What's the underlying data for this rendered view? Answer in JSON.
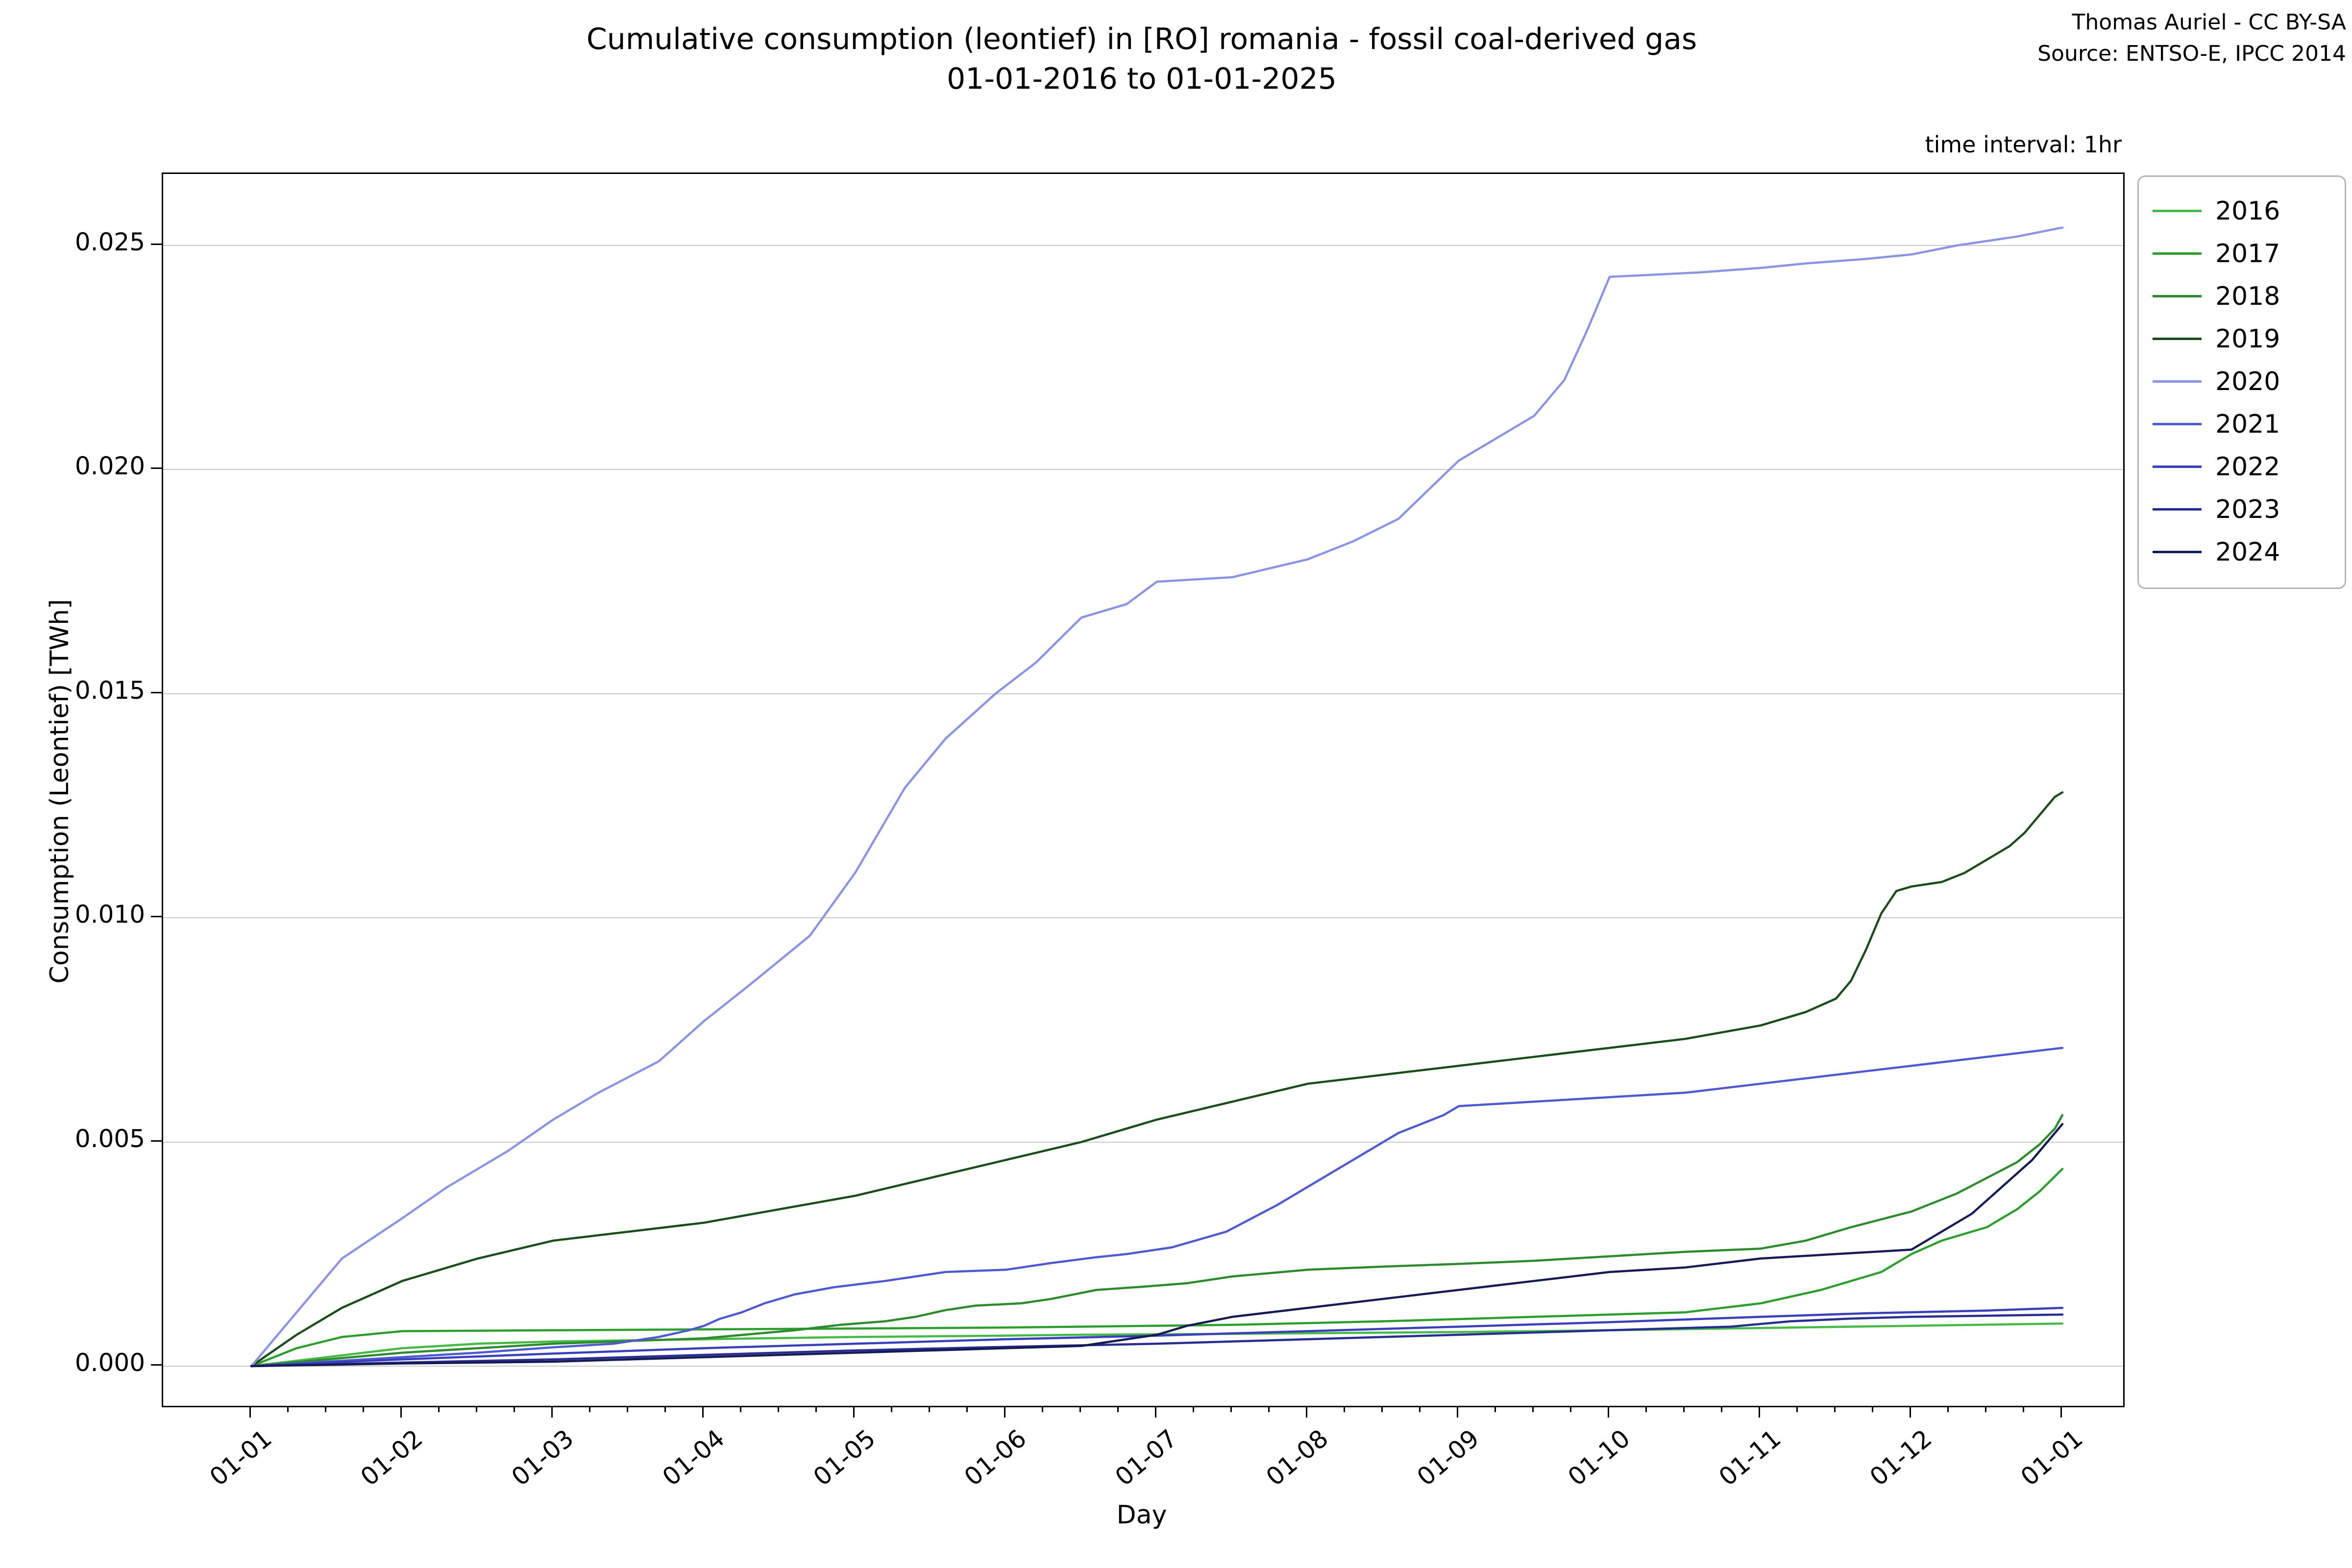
{
  "header": {
    "title_line1": "Cumulative consumption (leontief) in [RO] romania - fossil coal-derived gas",
    "title_line2": "01-01-2016 to 01-01-2025",
    "attribution_line1": "Thomas Auriel - CC BY-SA",
    "attribution_line2": "Source: ENTSO-E, IPCC 2014",
    "time_interval": "time interval: 1hr"
  },
  "chart_data": {
    "type": "line",
    "title": "Cumulative consumption (leontief) in [RO] romania - fossil coal-derived gas 01-01-2016 to 01-01-2025",
    "xlabel": "Day",
    "ylabel": "Consumption (Leontief) [TWh]",
    "grid": "horizontal",
    "legend_position": "upper right, outside axes",
    "x_tick_labels": [
      "01-01",
      "01-02",
      "01-03",
      "01-04",
      "01-05",
      "01-06",
      "01-07",
      "01-08",
      "01-09",
      "01-10",
      "01-11",
      "01-12",
      "01-01"
    ],
    "y_tick_labels": [
      "0.000",
      "0.005",
      "0.010",
      "0.015",
      "0.020",
      "0.025"
    ],
    "y_tick_values": [
      0.0,
      0.005,
      0.01,
      0.015,
      0.02,
      0.025
    ],
    "ylim": [
      -0.00089,
      0.0266
    ],
    "xlim_months": [
      -0.584,
      12.4
    ],
    "minor_x_ticks_per_month": 3,
    "series": [
      {
        "name": "2016",
        "color": "#46b946",
        "points": [
          [
            0,
            0
          ],
          [
            0.5,
            0.0002
          ],
          [
            1,
            0.0004
          ],
          [
            1.5,
            0.0005
          ],
          [
            2,
            0.00055
          ],
          [
            3,
            0.0006
          ],
          [
            4,
            0.00065
          ],
          [
            5,
            0.00068
          ],
          [
            5.5,
            0.0007
          ],
          [
            6.5,
            0.00072
          ],
          [
            8,
            0.00076
          ],
          [
            9,
            0.0008
          ],
          [
            10,
            0.00085
          ],
          [
            11,
            0.0009
          ],
          [
            12,
            0.00095
          ]
        ]
      },
      {
        "name": "2017",
        "color": "#2d9e2d",
        "points": [
          [
            0,
            0
          ],
          [
            0.3,
            0.0004
          ],
          [
            0.6,
            0.00065
          ],
          [
            1,
            0.00078
          ],
          [
            2,
            0.0008
          ],
          [
            3,
            0.00082
          ],
          [
            4,
            0.00084
          ],
          [
            5,
            0.00086
          ],
          [
            5.5,
            0.00088
          ],
          [
            6.5,
            0.00092
          ],
          [
            7.5,
            0.001
          ],
          [
            8.5,
            0.0011
          ],
          [
            9.5,
            0.0012
          ],
          [
            10,
            0.0014
          ],
          [
            10.4,
            0.0017
          ],
          [
            10.8,
            0.0021
          ],
          [
            11,
            0.0025
          ],
          [
            11.2,
            0.0028
          ],
          [
            11.5,
            0.0031
          ],
          [
            11.7,
            0.0035
          ],
          [
            11.85,
            0.0039
          ],
          [
            12,
            0.0044
          ]
        ]
      },
      {
        "name": "2018",
        "color": "#2d8b2d",
        "points": [
          [
            0,
            0
          ],
          [
            0.5,
            0.00015
          ],
          [
            1,
            0.0003
          ],
          [
            2,
            0.0005
          ],
          [
            3,
            0.00062
          ],
          [
            3.6,
            0.0008
          ],
          [
            3.9,
            0.00092
          ],
          [
            4.2,
            0.001
          ],
          [
            4.4,
            0.0011
          ],
          [
            4.6,
            0.00125
          ],
          [
            4.8,
            0.00135
          ],
          [
            5.1,
            0.0014
          ],
          [
            5.3,
            0.0015
          ],
          [
            5.6,
            0.0017
          ],
          [
            5.9,
            0.00177
          ],
          [
            6.2,
            0.00185
          ],
          [
            6.5,
            0.002
          ],
          [
            7,
            0.00215
          ],
          [
            7.5,
            0.00222
          ],
          [
            8,
            0.00228
          ],
          [
            8.5,
            0.00235
          ],
          [
            9,
            0.00245
          ],
          [
            9.5,
            0.00255
          ],
          [
            10,
            0.00262
          ],
          [
            10.3,
            0.0028
          ],
          [
            10.6,
            0.0031
          ],
          [
            11,
            0.00345
          ],
          [
            11.3,
            0.00385
          ],
          [
            11.5,
            0.0042
          ],
          [
            11.7,
            0.00455
          ],
          [
            11.85,
            0.00495
          ],
          [
            11.95,
            0.0053
          ],
          [
            12,
            0.0056
          ]
        ]
      },
      {
        "name": "2019",
        "color": "#1b4d1b",
        "points": [
          [
            0,
            0
          ],
          [
            0.3,
            0.0007
          ],
          [
            0.6,
            0.0013
          ],
          [
            1,
            0.0019
          ],
          [
            1.5,
            0.0024
          ],
          [
            2,
            0.0028
          ],
          [
            2.5,
            0.003
          ],
          [
            3,
            0.0032
          ],
          [
            3.5,
            0.0035
          ],
          [
            4,
            0.0038
          ],
          [
            4.5,
            0.0042
          ],
          [
            5,
            0.0046
          ],
          [
            5.5,
            0.005
          ],
          [
            6,
            0.0055
          ],
          [
            6.5,
            0.0059
          ],
          [
            7,
            0.0063
          ],
          [
            7.5,
            0.0065
          ],
          [
            8,
            0.0067
          ],
          [
            8.5,
            0.0069
          ],
          [
            9,
            0.0071
          ],
          [
            9.5,
            0.0073
          ],
          [
            10,
            0.0076
          ],
          [
            10.3,
            0.0079
          ],
          [
            10.5,
            0.0082
          ],
          [
            10.6,
            0.0086
          ],
          [
            10.7,
            0.0093
          ],
          [
            10.8,
            0.0101
          ],
          [
            10.9,
            0.0106
          ],
          [
            11,
            0.0107
          ],
          [
            11.2,
            0.0108
          ],
          [
            11.35,
            0.011
          ],
          [
            11.5,
            0.0113
          ],
          [
            11.65,
            0.0116
          ],
          [
            11.75,
            0.0119
          ],
          [
            11.85,
            0.0123
          ],
          [
            11.95,
            0.0127
          ],
          [
            12,
            0.0128
          ]
        ]
      },
      {
        "name": "2020",
        "color": "#8b93e4",
        "points": [
          [
            0,
            0
          ],
          [
            0.3,
            0.0012
          ],
          [
            0.6,
            0.0024
          ],
          [
            1,
            0.0033
          ],
          [
            1.3,
            0.004
          ],
          [
            1.7,
            0.0048
          ],
          [
            2,
            0.0055
          ],
          [
            2.3,
            0.0061
          ],
          [
            2.7,
            0.0068
          ],
          [
            3,
            0.0077
          ],
          [
            3.3,
            0.0085
          ],
          [
            3.7,
            0.0096
          ],
          [
            4,
            0.011
          ],
          [
            4.33,
            0.0129
          ],
          [
            4.6,
            0.014
          ],
          [
            4.93,
            0.015
          ],
          [
            5.2,
            0.0157
          ],
          [
            5.5,
            0.0167
          ],
          [
            5.8,
            0.017
          ],
          [
            6,
            0.0175
          ],
          [
            6.5,
            0.0176
          ],
          [
            7,
            0.018
          ],
          [
            7.3,
            0.0184
          ],
          [
            7.6,
            0.0189
          ],
          [
            8,
            0.0202
          ],
          [
            8.5,
            0.0212
          ],
          [
            8.7,
            0.022
          ],
          [
            8.85,
            0.0231
          ],
          [
            9,
            0.0243
          ],
          [
            9.3,
            0.02435
          ],
          [
            9.6,
            0.0244
          ],
          [
            10,
            0.0245
          ],
          [
            10.3,
            0.0246
          ],
          [
            10.7,
            0.0247
          ],
          [
            11,
            0.0248
          ],
          [
            11.3,
            0.025
          ],
          [
            11.7,
            0.0252
          ],
          [
            12,
            0.0254
          ]
        ]
      },
      {
        "name": "2021",
        "color": "#4f5ace",
        "points": [
          [
            0,
            0
          ],
          [
            0.5,
            0.0001
          ],
          [
            1,
            0.0002
          ],
          [
            1.5,
            0.0003
          ],
          [
            2,
            0.00042
          ],
          [
            2.4,
            0.0005
          ],
          [
            2.7,
            0.00065
          ],
          [
            2.9,
            0.0008
          ],
          [
            3,
            0.0009
          ],
          [
            3.1,
            0.00105
          ],
          [
            3.25,
            0.0012
          ],
          [
            3.4,
            0.0014
          ],
          [
            3.6,
            0.0016
          ],
          [
            3.86,
            0.00176
          ],
          [
            4.2,
            0.0019
          ],
          [
            4.6,
            0.0021
          ],
          [
            5,
            0.00215
          ],
          [
            5.3,
            0.0023
          ],
          [
            5.6,
            0.00243
          ],
          [
            5.8,
            0.0025
          ],
          [
            6.1,
            0.00265
          ],
          [
            6.46,
            0.003
          ],
          [
            6.8,
            0.0036
          ],
          [
            7,
            0.004
          ],
          [
            7.3,
            0.0046
          ],
          [
            7.6,
            0.0052
          ],
          [
            7.9,
            0.0056
          ],
          [
            8,
            0.0058
          ],
          [
            8.5,
            0.0059
          ],
          [
            9,
            0.006
          ],
          [
            9.5,
            0.0061
          ],
          [
            10,
            0.0063
          ],
          [
            10.5,
            0.0065
          ],
          [
            11,
            0.0067
          ],
          [
            11.5,
            0.0069
          ],
          [
            12,
            0.0071
          ]
        ]
      },
      {
        "name": "2022",
        "color": "#3a40bc",
        "points": [
          [
            0,
            0
          ],
          [
            0.5,
            8e-05
          ],
          [
            1,
            0.00015
          ],
          [
            2,
            0.00028
          ],
          [
            3,
            0.0004
          ],
          [
            4,
            0.0005
          ],
          [
            5,
            0.0006
          ],
          [
            6,
            0.00068
          ],
          [
            7,
            0.00078
          ],
          [
            8,
            0.00088
          ],
          [
            9,
            0.00098
          ],
          [
            10,
            0.0011
          ],
          [
            10.7,
            0.00118
          ],
          [
            11.5,
            0.00124
          ],
          [
            12,
            0.0013
          ]
        ]
      },
      {
        "name": "2023",
        "color": "#282d92",
        "points": [
          [
            0,
            0
          ],
          [
            1,
            8e-05
          ],
          [
            2,
            0.00015
          ],
          [
            3,
            0.00025
          ],
          [
            4,
            0.00035
          ],
          [
            5,
            0.00043
          ],
          [
            6,
            0.0005
          ],
          [
            7,
            0.0006
          ],
          [
            8,
            0.0007
          ],
          [
            9,
            0.0008
          ],
          [
            9.8,
            0.00088
          ],
          [
            10.2,
            0.001
          ],
          [
            10.6,
            0.00106
          ],
          [
            11,
            0.0011
          ],
          [
            12,
            0.00115
          ]
        ]
      },
      {
        "name": "2024",
        "color": "#171b54",
        "points": [
          [
            0,
            0
          ],
          [
            1,
            6e-05
          ],
          [
            2,
            0.0001
          ],
          [
            3,
            0.0002
          ],
          [
            4,
            0.0003
          ],
          [
            5,
            0.0004
          ],
          [
            5.5,
            0.00045
          ],
          [
            6,
            0.0007
          ],
          [
            6.2,
            0.0009
          ],
          [
            6.5,
            0.0011
          ],
          [
            7,
            0.0013
          ],
          [
            7.5,
            0.0015
          ],
          [
            8,
            0.0017
          ],
          [
            8.5,
            0.0019
          ],
          [
            9,
            0.0021
          ],
          [
            9.5,
            0.0022
          ],
          [
            10,
            0.0024
          ],
          [
            10.5,
            0.0025
          ],
          [
            11,
            0.0026
          ],
          [
            11.2,
            0.003
          ],
          [
            11.4,
            0.0034
          ],
          [
            11.6,
            0.004
          ],
          [
            11.8,
            0.0046
          ],
          [
            11.9,
            0.005
          ],
          [
            12,
            0.0054
          ]
        ]
      }
    ]
  },
  "legend": {
    "entries": [
      "2016",
      "2017",
      "2018",
      "2019",
      "2020",
      "2021",
      "2022",
      "2023",
      "2024"
    ]
  }
}
